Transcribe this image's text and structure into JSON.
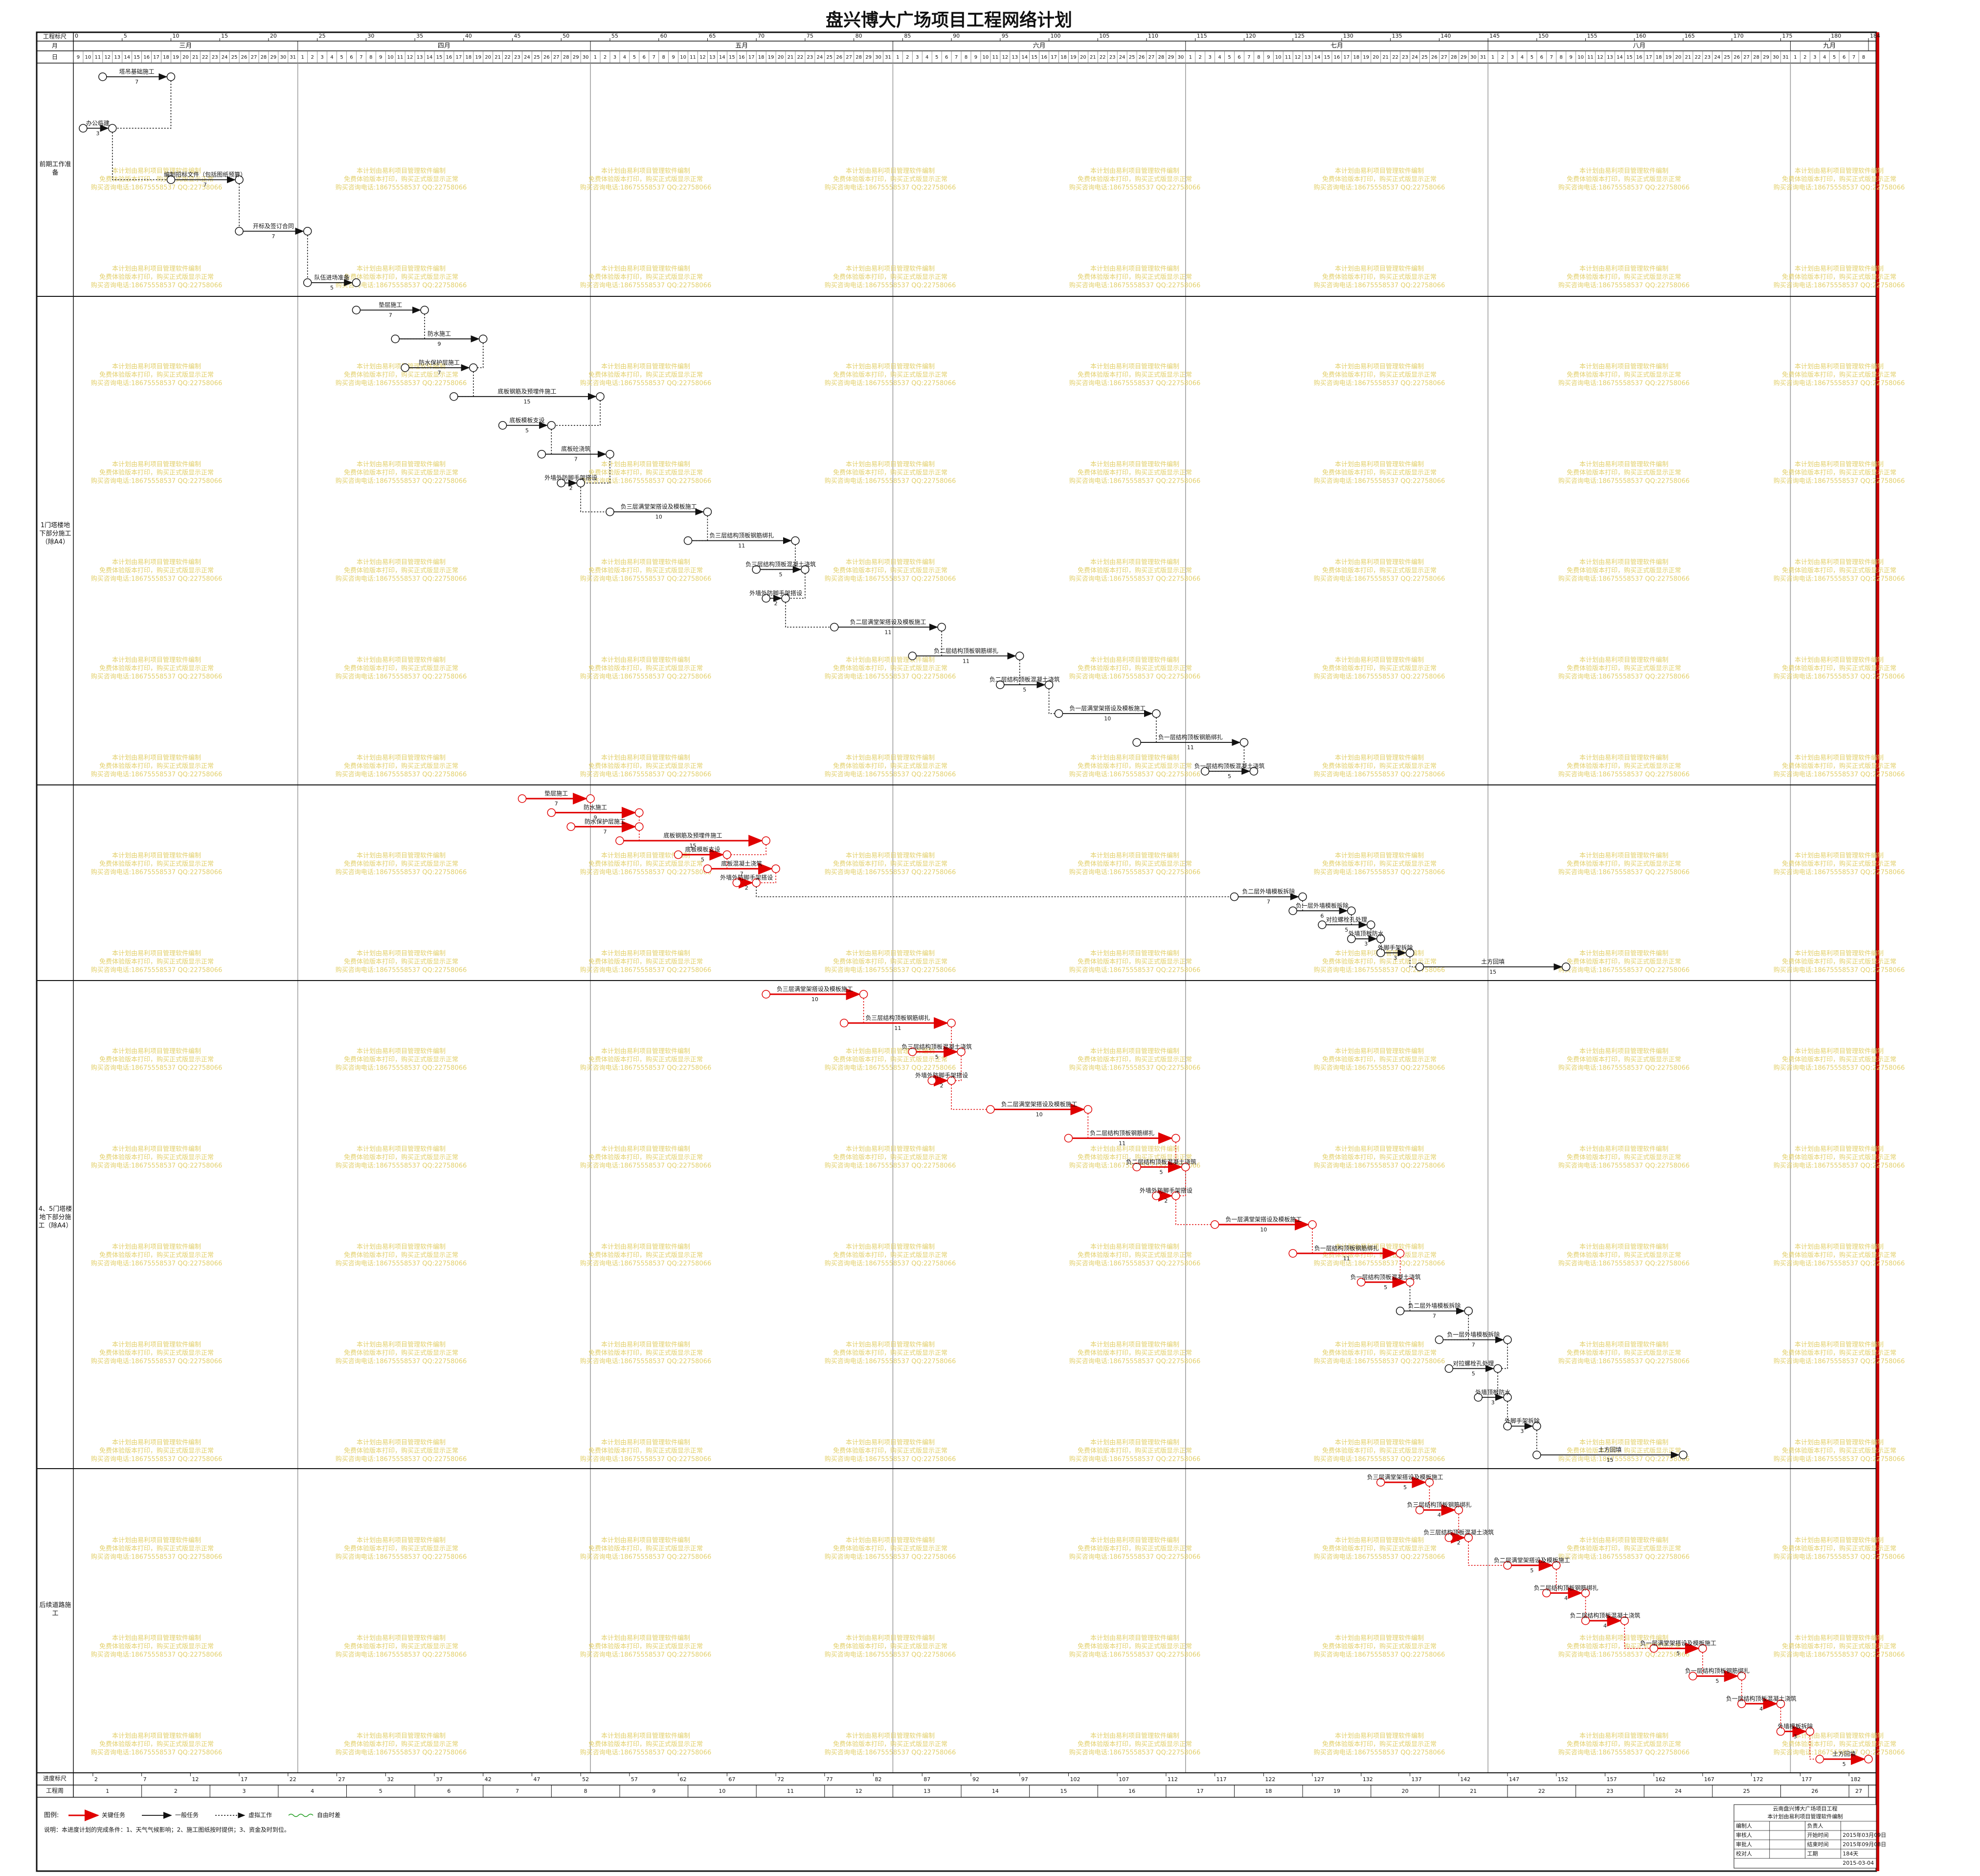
{
  "header": {
    "title": "盘兴博大广场项目工程网络计划",
    "ruler_label": "工程标尺",
    "month_label": "月",
    "day_label": "日",
    "ruler_ticks": [
      0,
      5,
      10,
      15,
      20,
      25,
      30,
      35,
      40,
      45,
      50,
      55,
      60,
      65,
      70,
      75,
      80,
      85,
      90,
      95,
      100,
      105,
      110,
      115,
      120,
      125,
      130,
      135,
      140,
      145,
      150,
      155,
      160,
      165,
      170,
      175,
      180,
      184
    ],
    "xlim": [
      0,
      184
    ],
    "months": [
      {
        "name": "三月",
        "days": [
          9,
          10,
          11,
          12,
          13,
          14,
          15,
          16,
          17,
          18,
          19,
          20,
          21,
          22,
          23,
          24,
          25,
          26,
          27,
          28,
          29,
          30,
          31
        ]
      },
      {
        "name": "四月",
        "days": [
          1,
          2,
          3,
          4,
          5,
          6,
          7,
          8,
          9,
          10,
          11,
          12,
          13,
          14,
          15,
          16,
          17,
          18,
          19,
          20,
          21,
          22,
          23,
          24,
          25,
          26,
          27,
          28,
          29,
          30
        ]
      },
      {
        "name": "五月",
        "days": [
          1,
          2,
          3,
          4,
          5,
          6,
          7,
          8,
          9,
          10,
          11,
          12,
          13,
          14,
          15,
          16,
          17,
          18,
          19,
          20,
          21,
          22,
          23,
          24,
          25,
          26,
          27,
          28,
          29,
          30,
          31
        ]
      },
      {
        "name": "六月",
        "days": [
          1,
          2,
          3,
          4,
          5,
          6,
          7,
          8,
          9,
          10,
          11,
          12,
          13,
          14,
          15,
          16,
          17,
          18,
          19,
          20,
          21,
          22,
          23,
          24,
          25,
          26,
          27,
          28,
          29,
          30
        ]
      },
      {
        "name": "七月",
        "days": [
          1,
          2,
          3,
          4,
          5,
          6,
          7,
          8,
          9,
          10,
          11,
          12,
          13,
          14,
          15,
          16,
          17,
          18,
          19,
          20,
          21,
          22,
          23,
          24,
          25,
          26,
          27,
          28,
          29,
          30,
          31
        ]
      },
      {
        "name": "八月",
        "days": [
          1,
          2,
          3,
          4,
          5,
          6,
          7,
          8,
          9,
          10,
          11,
          12,
          13,
          14,
          15,
          16,
          17,
          18,
          19,
          20,
          21,
          22,
          23,
          24,
          25,
          26,
          27,
          28,
          29,
          30,
          31
        ]
      },
      {
        "name": "九月",
        "days": [
          1,
          2,
          3,
          4,
          5,
          6,
          7,
          8
        ]
      }
    ]
  },
  "lanes": [
    {
      "label": "前期工作准备",
      "tasks": [
        {
          "name": "塔吊基础施工",
          "start": 3,
          "end": 10,
          "duration": 7,
          "critical": false
        },
        {
          "name": "办公临建",
          "start": 1,
          "end": 4,
          "duration": 3,
          "critical": false
        },
        {
          "name": "编制招标文件（包括图纸预算）",
          "start": 10,
          "end": 17,
          "duration": 7,
          "critical": false
        },
        {
          "name": "开标及签订合同",
          "start": 17,
          "end": 24,
          "duration": 7,
          "critical": false
        },
        {
          "name": "队伍进场准备",
          "start": 24,
          "end": 29,
          "duration": 5,
          "critical": false
        }
      ]
    },
    {
      "label": "1门塔楼地下部分施工（除A4）",
      "tasks": [
        {
          "name": "垫层施工",
          "start": 29,
          "end": 36,
          "duration": 7,
          "critical": false
        },
        {
          "name": "防水施工",
          "start": 33,
          "end": 42,
          "duration": 9,
          "critical": false
        },
        {
          "name": "防水保护层施工",
          "start": 34,
          "end": 41,
          "duration": 7,
          "critical": false
        },
        {
          "name": "底板钢筋及预埋件施工",
          "start": 39,
          "end": 54,
          "duration": 15,
          "critical": false
        },
        {
          "name": "底板模板支设",
          "start": 44,
          "end": 49,
          "duration": 5,
          "critical": false
        },
        {
          "name": "底板砼浇筑",
          "start": 48,
          "end": 55,
          "duration": 7,
          "critical": false
        },
        {
          "name": "外墙外防脚手架搭设",
          "start": 50,
          "end": 52,
          "duration": 2,
          "critical": false
        },
        {
          "name": "负三层满堂架搭设及模板施工",
          "start": 55,
          "end": 65,
          "duration": 10,
          "critical": false
        },
        {
          "name": "负三层结构顶板钢筋绑扎",
          "start": 63,
          "end": 74,
          "duration": 11,
          "critical": false
        },
        {
          "name": "负三层结构顶板混凝土浇筑",
          "start": 70,
          "end": 75,
          "duration": 5,
          "critical": false
        },
        {
          "name": "外墙外防脚手架搭设",
          "start": 71,
          "end": 73,
          "duration": 2,
          "critical": false
        },
        {
          "name": "负二层满堂架搭设及模板施工",
          "start": 78,
          "end": 89,
          "duration": 11,
          "critical": false
        },
        {
          "name": "负二层结构顶板钢筋绑扎",
          "start": 86,
          "end": 97,
          "duration": 11,
          "critical": false
        },
        {
          "name": "负二层结构顶板混凝土浇筑",
          "start": 95,
          "end": 100,
          "duration": 5,
          "critical": false
        },
        {
          "name": "负一层满堂架搭设及模板施工",
          "start": 101,
          "end": 111,
          "duration": 10,
          "critical": false
        },
        {
          "name": "负一层结构顶板钢筋绑扎",
          "start": 109,
          "end": 120,
          "duration": 11,
          "critical": false
        },
        {
          "name": "负一层结构顶板混凝土浇筑",
          "start": 116,
          "end": 121,
          "duration": 5,
          "critical": false
        }
      ]
    },
    {
      "tasks": [
        {
          "name": "垫层施工",
          "start": 46,
          "end": 53,
          "duration": 7,
          "critical": true
        },
        {
          "name": "防水施工",
          "start": 49,
          "end": 58,
          "duration": 9,
          "critical": true
        },
        {
          "name": "防水保护层施工",
          "start": 51,
          "end": 58,
          "duration": 7,
          "critical": true
        },
        {
          "name": "底板钢筋及预埋件施工",
          "start": 56,
          "end": 71,
          "duration": 15,
          "critical": true
        },
        {
          "name": "底板模板支设",
          "start": 62,
          "end": 67,
          "duration": 5,
          "critical": true
        },
        {
          "name": "底板混凝土浇筑",
          "start": 65,
          "end": 72,
          "duration": 7,
          "critical": true
        },
        {
          "name": "外墙外防脚手架搭设",
          "start": 68,
          "end": 70,
          "duration": 2,
          "critical": true
        },
        {
          "name": "负二层外墙模板拆除",
          "start": 119,
          "end": 126,
          "duration": 7,
          "critical": false
        },
        {
          "name": "负一层外墙模板拆除",
          "start": 125,
          "end": 131,
          "duration": 6,
          "critical": false
        },
        {
          "name": "对拉螺栓孔处理",
          "start": 128,
          "end": 133,
          "duration": 5,
          "critical": false
        },
        {
          "name": "外墙顶板防水",
          "start": 131,
          "end": 134,
          "duration": 3,
          "critical": false
        },
        {
          "name": "外脚手架拆除",
          "start": 134,
          "end": 137,
          "duration": 3,
          "critical": false
        },
        {
          "name": "土方回填",
          "start": 138,
          "end": 153,
          "duration": 15,
          "critical": false
        }
      ]
    },
    {
      "label": "4、5门塔楼地下部分施工（除A4）",
      "tasks": [
        {
          "name": "负三层满堂架搭设及模板施工",
          "start": 71,
          "end": 81,
          "duration": 10,
          "critical": true
        },
        {
          "name": "负三层结构顶板钢筋绑扎",
          "start": 79,
          "end": 90,
          "duration": 11,
          "critical": true
        },
        {
          "name": "负三层结构顶板混凝土浇筑",
          "start": 86,
          "end": 91,
          "duration": 5,
          "critical": true
        },
        {
          "name": "外墙外防脚手架搭设",
          "start": 88,
          "end": 90,
          "duration": 2,
          "critical": true
        },
        {
          "name": "负二层满堂架搭设及模板施工",
          "start": 94,
          "end": 104,
          "duration": 10,
          "critical": true
        },
        {
          "name": "负二层结构顶板钢筋绑扎",
          "start": 102,
          "end": 113,
          "duration": 11,
          "critical": true
        },
        {
          "name": "负二层结构顶板混凝土浇筑",
          "start": 109,
          "end": 114,
          "duration": 5,
          "critical": true
        },
        {
          "name": "外墙外防脚手架搭设",
          "start": 111,
          "end": 113,
          "duration": 2,
          "critical": true
        },
        {
          "name": "负一层满堂架搭设及模板施工",
          "start": 117,
          "end": 127,
          "duration": 10,
          "critical": true
        },
        {
          "name": "负一层结构顶板钢筋绑扎",
          "start": 125,
          "end": 136,
          "duration": 11,
          "critical": true
        },
        {
          "name": "负一层结构顶板混凝土浇筑",
          "start": 132,
          "end": 137,
          "duration": 5,
          "critical": true
        },
        {
          "name": "负二层外墙模板拆除",
          "start": 136,
          "end": 143,
          "duration": 7,
          "critical": false
        },
        {
          "name": "负一层外墙模板拆除",
          "start": 140,
          "end": 147,
          "duration": 7,
          "critical": false
        },
        {
          "name": "对拉螺栓孔处理",
          "start": 141,
          "end": 146,
          "duration": 5,
          "critical": false
        },
        {
          "name": "外墙顶板防水",
          "start": 144,
          "end": 147,
          "duration": 3,
          "critical": false
        },
        {
          "name": "外脚手架拆除",
          "start": 147,
          "end": 150,
          "duration": 3,
          "critical": false
        },
        {
          "name": "土方回填",
          "start": 150,
          "end": 165,
          "duration": 15,
          "critical": false
        }
      ]
    },
    {
      "label": "后续道路施工",
      "tasks": [
        {
          "name": "负三层满堂架搭设及模板施工",
          "start": 134,
          "end": 139,
          "duration": 5,
          "critical": true
        },
        {
          "name": "负三层结构顶板钢筋绑扎",
          "start": 138,
          "end": 142,
          "duration": 4,
          "critical": true
        },
        {
          "name": "负三层结构顶板混凝土浇筑",
          "start": 141,
          "end": 143,
          "duration": 2,
          "critical": true
        },
        {
          "name": "负二层满堂架搭设及模板施工",
          "start": 147,
          "end": 152,
          "duration": 5,
          "critical": true
        },
        {
          "name": "负二层结构顶板钢筋绑扎",
          "start": 151,
          "end": 155,
          "duration": 4,
          "critical": true
        },
        {
          "name": "负二层结构顶板混凝土浇筑",
          "start": 155,
          "end": 159,
          "duration": 4,
          "critical": true
        },
        {
          "name": "负一层满堂架搭设及模板施工",
          "start": 162,
          "end": 167,
          "duration": 5,
          "critical": true
        },
        {
          "name": "负一层结构顶板钢筋绑扎",
          "start": 166,
          "end": 171,
          "duration": 5,
          "critical": true
        },
        {
          "name": "负一层结构顶板混凝土浇筑",
          "start": 171,
          "end": 175,
          "duration": 4,
          "critical": true
        },
        {
          "name": "外墙模板拆除",
          "start": 175,
          "end": 178,
          "duration": 3,
          "critical": true
        },
        {
          "name": "土方回填",
          "start": 179,
          "end": 184,
          "duration": 5,
          "critical": true
        }
      ]
    }
  ],
  "footer": {
    "progress_label": "进度标尺",
    "week_label": "工程周",
    "progress_ticks": [
      2,
      7,
      12,
      17,
      22,
      27,
      32,
      37,
      42,
      47,
      52,
      57,
      62,
      67,
      72,
      77,
      82,
      87,
      92,
      97,
      102,
      107,
      112,
      117,
      122,
      127,
      132,
      137,
      142,
      147,
      152,
      157,
      162,
      167,
      172,
      177,
      182
    ],
    "weeks": [
      1,
      2,
      3,
      4,
      5,
      6,
      7,
      8,
      9,
      10,
      11,
      12,
      13,
      14,
      15,
      16,
      17,
      18,
      19,
      20,
      21,
      22,
      23,
      24,
      25,
      26,
      27
    ]
  },
  "legend": {
    "title": "图例:",
    "critical": "关键任务",
    "normal": "一般任务",
    "dummy": "虚拟工作",
    "float": "自由时差",
    "note": "说明：本进度计划的完成条件：1、天气气候影响；2、施工图纸按时提供；3、资金及时到位。"
  },
  "watermark": [
    "本计划由易利项目管理软件编制",
    "免费体验版本打印，购买正式版显示正常",
    "购买咨询电话:18675558537 QQ:22758066"
  ],
  "info": {
    "title": "云南盘兴博大广场项目工程",
    "subtitle": "本计划由易利项目管理软件编制",
    "rows": [
      [
        "编制人",
        "负责人"
      ],
      [
        "审核人",
        "开始时间",
        "2015年03月09日"
      ],
      [
        "审批人",
        "结束时间",
        "2015年09月08日"
      ],
      [
        "校对人",
        "工期",
        "184天"
      ],
      [
        "2015-03-04"
      ]
    ]
  }
}
